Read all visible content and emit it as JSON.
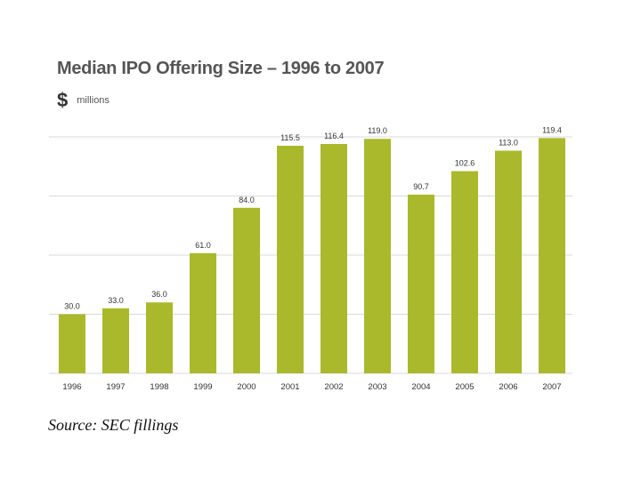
{
  "chart_data": {
    "type": "bar",
    "title": "Median IPO Offering Size – 1996 to 2007",
    "unit_symbol": "$",
    "ylabel": "millions",
    "xlabel": "",
    "categories": [
      "1996",
      "1997",
      "1998",
      "1999",
      "2000",
      "2001",
      "2002",
      "2003",
      "2004",
      "2005",
      "2006",
      "2007"
    ],
    "values": [
      30.0,
      33.0,
      36.0,
      61.0,
      84.0,
      115.5,
      116.4,
      119.0,
      90.7,
      102.6,
      113.0,
      119.4
    ],
    "value_labels": [
      "30.0",
      "33.0",
      "36.0",
      "61.0",
      "84.0",
      "115.5",
      "116.4",
      "119.0",
      "90.7",
      "102.6",
      "113.0",
      "119.4"
    ],
    "ylim": [
      0,
      120
    ],
    "grid": true,
    "bar_color": "#a9b92b",
    "grid_color": "#d9d9d9"
  },
  "source": "Source: SEC fillings"
}
